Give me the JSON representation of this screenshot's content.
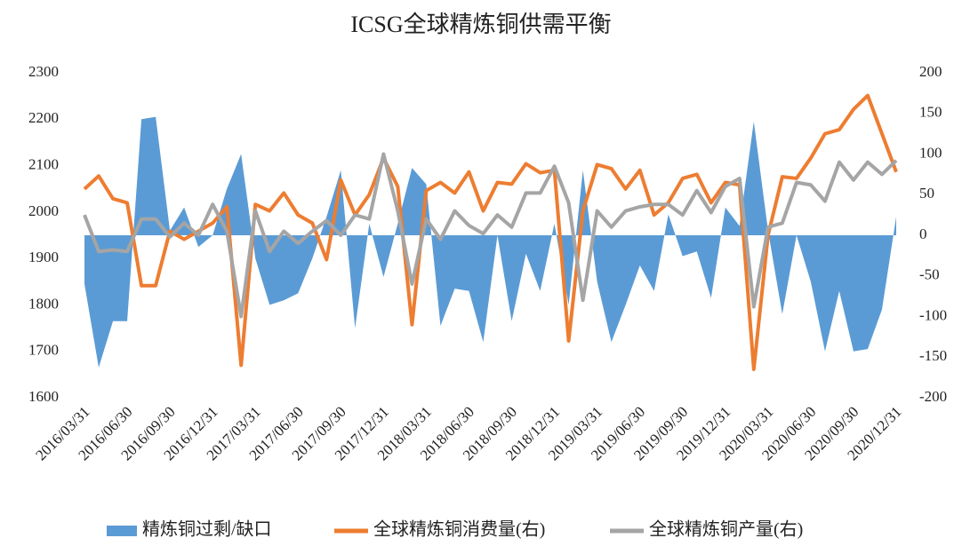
{
  "chart_data": {
    "type": "line",
    "title": "ICSG全球精炼铜供需平衡",
    "categories": [
      "2016/03/31",
      null,
      null,
      "2016/06/30",
      null,
      null,
      "2016/09/30",
      null,
      null,
      "2016/12/31",
      null,
      null,
      "2017/03/31",
      null,
      null,
      "2017/06/30",
      null,
      null,
      "2017/09/30",
      null,
      null,
      "2017/12/31",
      null,
      null,
      "2018/03/31",
      null,
      null,
      "2018/06/30",
      null,
      null,
      "2018/09/30",
      null,
      null,
      "2018/12/31",
      null,
      null,
      "2019/03/31",
      null,
      null,
      "2019/06/30",
      null,
      null,
      "2019/09/30",
      null,
      null,
      "2019/12/31",
      null,
      null,
      "2020/03/31",
      null,
      null,
      "2020/06/30",
      null,
      null,
      "2020/09/30",
      null,
      null,
      "2020/12/31"
    ],
    "series": [
      {
        "name": "精炼铜过剩/缺口",
        "type": "area",
        "color": "#5b9bd5",
        "values": [
          1845,
          1665,
          1765,
          1765,
          2200,
          2205,
          1960,
          2010,
          1925,
          1950,
          2050,
          2125,
          1900,
          1800,
          1810,
          1825,
          1900,
          1990,
          2090,
          1750,
          1975,
          1860,
          1975,
          2095,
          2060,
          1755,
          1835,
          1830,
          1720,
          1950,
          1765,
          1910,
          1830,
          1975,
          1800,
          2090,
          1850,
          1720,
          1800,
          1885,
          1830,
          1995,
          1905,
          1915,
          1815,
          2010,
          1970,
          2195,
          1960,
          1780,
          1950,
          1850,
          1700,
          1830,
          1700,
          1705,
          1790,
          1990
        ]
      },
      {
        "name": "全球精炼铜消费量(右)",
        "type": "line",
        "axis": "y2",
        "color": "#ed7d31",
        "values": [
          57,
          73,
          45,
          40,
          -62,
          -62,
          5,
          -5,
          5,
          15,
          35,
          -160,
          38,
          30,
          52,
          25,
          15,
          -30,
          68,
          25,
          50,
          95,
          60,
          -110,
          55,
          65,
          52,
          78,
          30,
          65,
          63,
          88,
          77,
          80,
          -130,
          30,
          87,
          82,
          57,
          80,
          25,
          40,
          70,
          75,
          40,
          65,
          62,
          -165,
          0,
          72,
          70,
          95,
          125,
          130,
          155,
          172,
          125,
          78
        ]
      },
      {
        "name": "全球精炼铜产量(右)",
        "type": "line",
        "axis": "y2",
        "color": "#a5a5a5",
        "values": [
          25,
          -20,
          -18,
          -20,
          20,
          20,
          -2,
          15,
          0,
          38,
          5,
          -100,
          30,
          -20,
          5,
          -10,
          5,
          18,
          0,
          25,
          20,
          100,
          30,
          -60,
          20,
          -5,
          30,
          12,
          2,
          25,
          10,
          52,
          52,
          85,
          40,
          -80,
          30,
          10,
          30,
          35,
          38,
          38,
          25,
          55,
          28,
          60,
          70,
          -88,
          10,
          15,
          65,
          62,
          42,
          90,
          68,
          90,
          75,
          92
        ]
      }
    ],
    "ylim": [
      1600,
      2300
    ],
    "yticks": [
      1600,
      1700,
      1800,
      1900,
      2000,
      2100,
      2200,
      2300
    ],
    "y2lim": [
      -200,
      200
    ],
    "y2ticks": [
      -200,
      -150,
      -100,
      -50,
      0,
      50,
      100,
      150,
      200
    ],
    "legend": "bottom"
  }
}
